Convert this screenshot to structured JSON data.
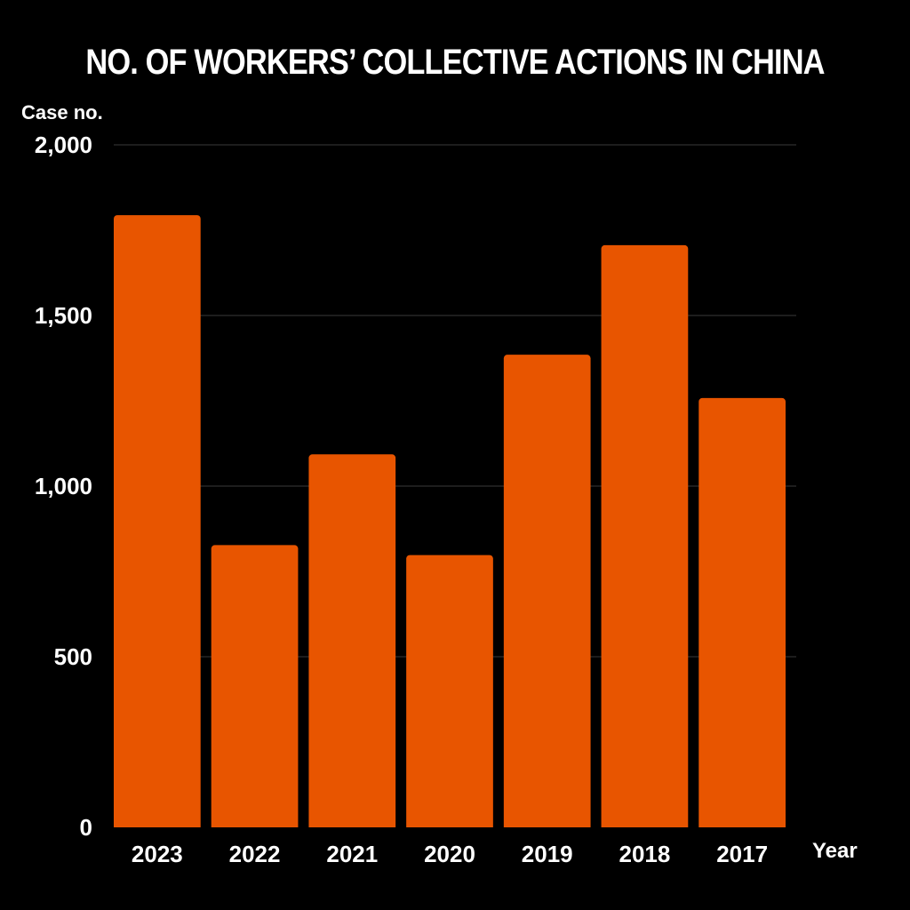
{
  "chart_data": {
    "type": "bar",
    "title": "NO. OF WORKERS’ COLLECTIVE ACTIONS IN CHINA",
    "ylabel": "Case no.",
    "xlabel": "Year",
    "categories": [
      "2023",
      "2022",
      "2021",
      "2020",
      "2019",
      "2018",
      "2017"
    ],
    "values": [
      1794,
      827,
      1093,
      798,
      1385,
      1706,
      1258
    ],
    "ylim": [
      0,
      2000
    ],
    "yticks": [
      0,
      500,
      1000,
      1500,
      2000
    ],
    "ytick_labels": [
      "0",
      "500",
      "1,000",
      "1,500",
      "2,000"
    ],
    "grid": true,
    "legend": "none",
    "colors": {
      "background": "#000000",
      "bar": "#E85500",
      "text": "#FFFFFF",
      "grid": "#3A3A3A"
    }
  }
}
